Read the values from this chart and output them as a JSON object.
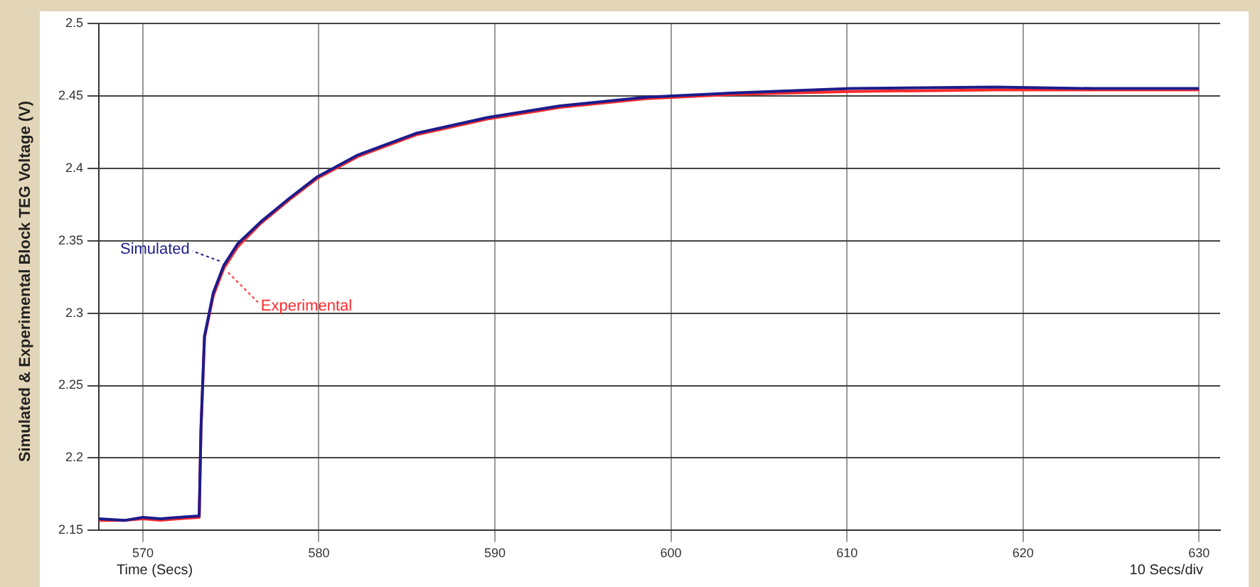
{
  "chart_data": {
    "type": "line",
    "ylabel": "Simulated & Experimental Block TEG Voltage (V)",
    "xlabel": "Time (Secs)",
    "annotations": [
      "10 Secs/div"
    ],
    "xlim": [
      567.5,
      631.2
    ],
    "xticks": [
      570,
      580,
      590,
      600,
      610,
      620,
      630
    ],
    "ylim": [
      2.15,
      2.5
    ],
    "yticks": [
      2.15,
      2.2,
      2.25,
      2.3,
      2.35,
      2.4,
      2.45,
      2.5
    ],
    "grid": true,
    "legend": "left",
    "marker": "none",
    "line_style": "solid",
    "series": [
      {
        "name": "Simulated",
        "color": "#1c1c8c",
        "x": [
          567.5,
          569,
          570,
          571,
          572,
          573.2,
          573.3,
          573.5,
          574,
          574.6,
          575.4,
          576.7,
          578.3,
          579.9,
          582.2,
          585.5,
          589.6,
          593.7,
          598.6,
          603.6,
          610.2,
          618.4,
          624,
          630
        ],
        "values": [
          2.158,
          2.157,
          2.159,
          2.158,
          2.159,
          2.16,
          2.22,
          2.284,
          2.314,
          2.333,
          2.348,
          2.363,
          2.379,
          2.394,
          2.409,
          2.424,
          2.435,
          2.443,
          2.449,
          2.452,
          2.455,
          2.456,
          2.455,
          2.455
        ]
      },
      {
        "name": "Experimental",
        "color": "#ff2a2a",
        "x": [
          567.5,
          569,
          570,
          571,
          572,
          573.2,
          573.3,
          573.5,
          574,
          574.6,
          575.4,
          576.7,
          578.3,
          579.9,
          582.2,
          585.5,
          589.6,
          593.7,
          598.6,
          603.6,
          610.2,
          618.4,
          624,
          630
        ],
        "values": [
          2.157,
          2.157,
          2.158,
          2.157,
          2.158,
          2.159,
          2.22,
          2.283,
          2.312,
          2.331,
          2.346,
          2.362,
          2.378,
          2.393,
          2.408,
          2.423,
          2.434,
          2.442,
          2.448,
          2.451,
          2.453,
          2.454,
          2.454,
          2.454
        ]
      }
    ]
  }
}
